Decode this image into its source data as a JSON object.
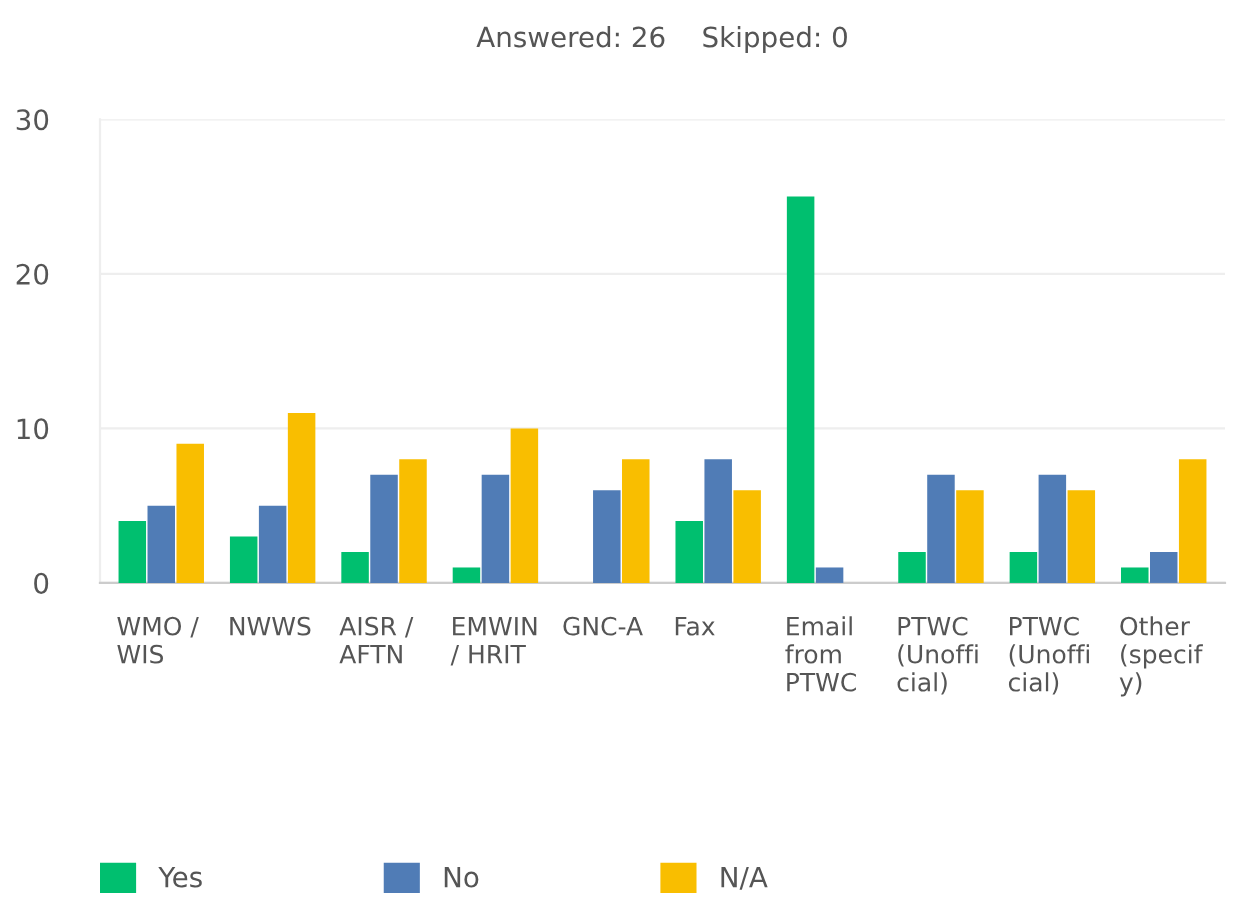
{
  "chart_data": {
    "type": "bar",
    "title": "Answered: 26    Skipped: 0",
    "categories": [
      "WMO /\nWIS",
      "NWWS",
      "AISR /\nAFTN",
      "EMWIN\n/ HRIT",
      "GNC-A",
      "Fax",
      "Email\nfrom\nPTWC",
      "PTWC\n(Unoffi\ncial)",
      "PTWC\n(Unoffi\ncial)",
      "Other\n(specif\ny)"
    ],
    "series": [
      {
        "name": "Yes",
        "color": "#00bf6f",
        "values": [
          4,
          3,
          2,
          1,
          0,
          4,
          25,
          2,
          2,
          1
        ]
      },
      {
        "name": "No",
        "color": "#507cb6",
        "values": [
          5,
          5,
          7,
          7,
          6,
          8,
          1,
          7,
          7,
          2
        ]
      },
      {
        "name": "N/A",
        "color": "#f9be00",
        "values": [
          9,
          11,
          8,
          10,
          8,
          6,
          0,
          6,
          6,
          8
        ]
      }
    ],
    "ylim": [
      0,
      30
    ],
    "yticks": [
      0,
      10,
      20,
      30
    ],
    "grid": "y",
    "legend": "bottom left"
  }
}
